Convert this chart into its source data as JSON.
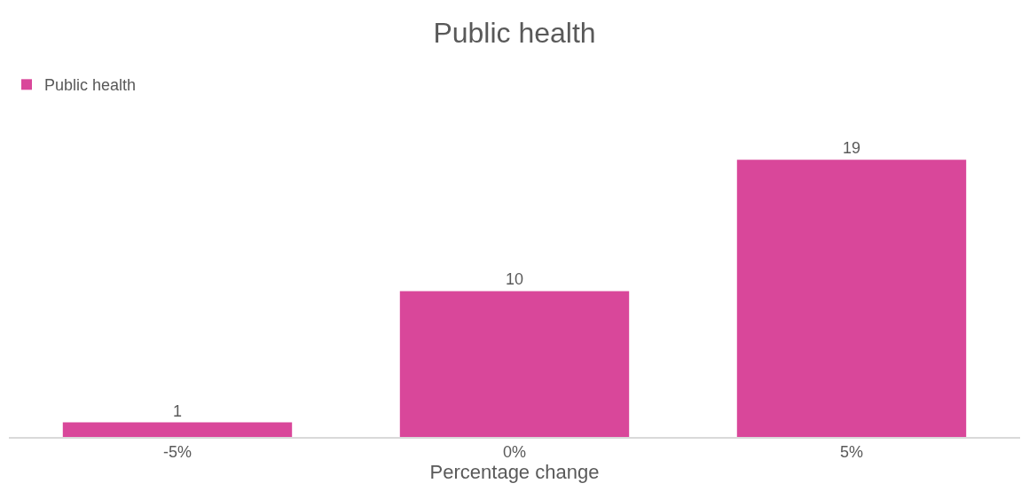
{
  "chart_data": {
    "type": "bar",
    "title": "Public health",
    "xlabel": "Percentage change",
    "categories": [
      "-5%",
      "0%",
      "5%"
    ],
    "series": [
      {
        "name": "Public health",
        "color": "#d9479a",
        "values": [
          1,
          10,
          19
        ]
      }
    ],
    "data_labels": true,
    "legend": "top left"
  }
}
